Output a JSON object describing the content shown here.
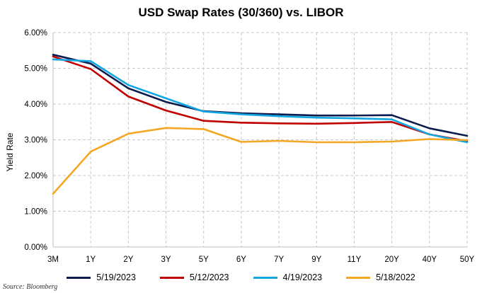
{
  "chart_data": {
    "type": "line",
    "title": "USD Swap Rates (30/360) vs. LIBOR",
    "ylabel": "Yield Rate",
    "xlabel": "",
    "categories": [
      "3M",
      "1Y",
      "2Y",
      "3Y",
      "5Y",
      "6Y",
      "7Y",
      "9Y",
      "11Y",
      "20Y",
      "40Y",
      "50Y"
    ],
    "ylim": [
      0,
      6
    ],
    "yticks": [
      "0.00%",
      "1.00%",
      "2.00%",
      "3.00%",
      "4.00%",
      "5.00%",
      "6.00%"
    ],
    "grid": true,
    "legend_position": "bottom",
    "series": [
      {
        "name": "5/19/2023",
        "color": "#0d1b4d",
        "values": [
          5.38,
          5.13,
          4.44,
          4.06,
          3.8,
          3.74,
          3.71,
          3.68,
          3.68,
          3.69,
          3.32,
          3.11
        ]
      },
      {
        "name": "5/12/2023",
        "color": "#c00000",
        "values": [
          5.33,
          4.98,
          4.21,
          3.82,
          3.53,
          3.48,
          3.46,
          3.45,
          3.47,
          3.5,
          3.15,
          2.96
        ]
      },
      {
        "name": "4/19/2023",
        "color": "#12a7e0",
        "values": [
          5.25,
          5.2,
          4.53,
          4.16,
          3.79,
          3.71,
          3.66,
          3.62,
          3.6,
          3.57,
          3.15,
          2.93
        ]
      },
      {
        "name": "5/18/2022",
        "color": "#f5a623",
        "values": [
          1.49,
          2.67,
          3.17,
          3.33,
          3.3,
          2.94,
          2.97,
          2.93,
          2.93,
          2.95,
          3.02,
          2.99
        ]
      }
    ]
  },
  "source": "Source: Bloomberg"
}
